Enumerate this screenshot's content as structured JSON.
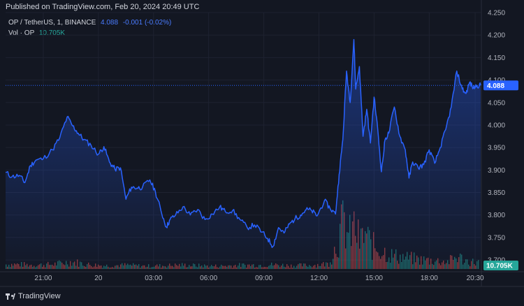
{
  "header": {
    "published": "Published on TradingView.com, Feb 20, 2024 20:49 UTC"
  },
  "legend": {
    "symbol": "OP / TetherUS, 1, BINANCE",
    "price": "4.088",
    "change": "-0.001 (-0.02%)",
    "vol_label": "Vol · OP",
    "vol_value": "10.705K"
  },
  "footer": {
    "logo_text": "TradingView"
  },
  "colors": {
    "background": "#131722",
    "line": "#2962ff",
    "price_label": "#2962ff",
    "vol_label": "#26a69a",
    "vol_up": "#26a69a",
    "vol_down": "#ef5350"
  },
  "chart_data": {
    "type": "area",
    "x_ticks": [
      "21:00",
      "20",
      "03:00",
      "06:00",
      "09:00",
      "12:00",
      "15:00",
      "18:00",
      "20:30"
    ],
    "x_tick_hours": [
      21,
      24,
      27,
      30,
      33,
      36,
      39,
      42,
      44.5
    ],
    "x_range_hours": [
      18.95,
      44.8
    ],
    "y_ticks": [
      "3.700",
      "3.750",
      "3.800",
      "3.850",
      "3.900",
      "3.950",
      "4.000",
      "4.050",
      "4.100",
      "4.150",
      "4.200",
      "4.250"
    ],
    "ylim": [
      3.68,
      4.25
    ],
    "last_price_label": "4.088",
    "last_price": 4.088,
    "volume_label": "10.705K",
    "price_series": {
      "hours": [
        18.95,
        19.3,
        19.7,
        20.0,
        20.3,
        20.6,
        21.0,
        21.5,
        21.9,
        22.3,
        22.6,
        22.9,
        23.2,
        23.6,
        24.0,
        24.3,
        24.6,
        24.9,
        25.2,
        25.5,
        25.8,
        26.1,
        26.4,
        26.8,
        27.1,
        27.4,
        27.7,
        27.9,
        28.2,
        28.6,
        29.0,
        29.4,
        29.8,
        30.2,
        30.6,
        30.9,
        31.3,
        31.7,
        32.1,
        32.5,
        32.9,
        33.2,
        33.5,
        33.8,
        34.1,
        34.4,
        34.7,
        35.0,
        35.3,
        35.6,
        35.9,
        36.3,
        36.6,
        36.9,
        37.1,
        37.3,
        37.5,
        37.7,
        37.9,
        38.0,
        38.2,
        38.4,
        38.6,
        38.8,
        39.0,
        39.2,
        39.4,
        39.6,
        39.8,
        40.1,
        40.4,
        40.7,
        40.9,
        41.1,
        41.4,
        41.7,
        42.0,
        42.3,
        42.6,
        42.9,
        43.2,
        43.5,
        43.8,
        44.0,
        44.2,
        44.4,
        44.6,
        44.8
      ],
      "values": [
        3.895,
        3.885,
        3.888,
        3.872,
        3.91,
        3.922,
        3.925,
        3.945,
        3.972,
        4.018,
        3.998,
        3.982,
        3.968,
        3.955,
        3.935,
        3.952,
        3.918,
        3.902,
        3.905,
        3.835,
        3.862,
        3.86,
        3.862,
        3.878,
        3.852,
        3.81,
        3.773,
        3.79,
        3.8,
        3.818,
        3.8,
        3.812,
        3.79,
        3.802,
        3.818,
        3.808,
        3.81,
        3.79,
        3.772,
        3.778,
        3.762,
        3.748,
        3.73,
        3.772,
        3.76,
        3.78,
        3.792,
        3.8,
        3.812,
        3.81,
        3.798,
        3.832,
        3.815,
        3.802,
        3.89,
        3.968,
        4.12,
        4.05,
        4.19,
        4.08,
        4.13,
        3.975,
        4.035,
        3.96,
        4.062,
        3.99,
        3.896,
        3.968,
        3.982,
        4.04,
        3.975,
        3.945,
        3.882,
        3.918,
        3.905,
        3.912,
        3.945,
        3.915,
        3.95,
        3.99,
        4.04,
        4.12,
        4.08,
        4.07,
        4.095,
        4.082,
        4.088,
        4.088
      ]
    },
    "volume_series": {
      "note_free": true,
      "hours": [
        19.5,
        20.5,
        21.5,
        22.5,
        23.5,
        24.5,
        25.5,
        26.5,
        27.5,
        28.5,
        29.5,
        30.5,
        31.5,
        32.5,
        33.5,
        34.5,
        35.5,
        36.5,
        37.0,
        37.3,
        37.6,
        37.9,
        38.2,
        38.5,
        38.8,
        39.1,
        39.4,
        39.7,
        40.0,
        40.5,
        41.0,
        41.5,
        42.0,
        42.5,
        43.0,
        43.5,
        44.0,
        44.5
      ],
      "values": [
        0.35,
        0.3,
        0.35,
        0.55,
        0.32,
        0.25,
        0.3,
        0.22,
        0.25,
        0.3,
        0.25,
        0.22,
        0.28,
        0.3,
        0.32,
        0.26,
        0.28,
        0.4,
        2.1,
        3.6,
        2.4,
        3.2,
        2.0,
        2.7,
        1.8,
        1.6,
        1.4,
        1.2,
        1.0,
        0.9,
        0.8,
        0.7,
        0.65,
        0.6,
        0.55,
        0.95,
        0.6,
        0.5
      ],
      "up": [
        true,
        false,
        true,
        true,
        false,
        true,
        false,
        true,
        false,
        true,
        false,
        true,
        true,
        false,
        true,
        false,
        true,
        true,
        true,
        false,
        true,
        false,
        true,
        false,
        true,
        false,
        true,
        false,
        true,
        false,
        true,
        false,
        true,
        false,
        true,
        false,
        true,
        true
      ]
    }
  }
}
